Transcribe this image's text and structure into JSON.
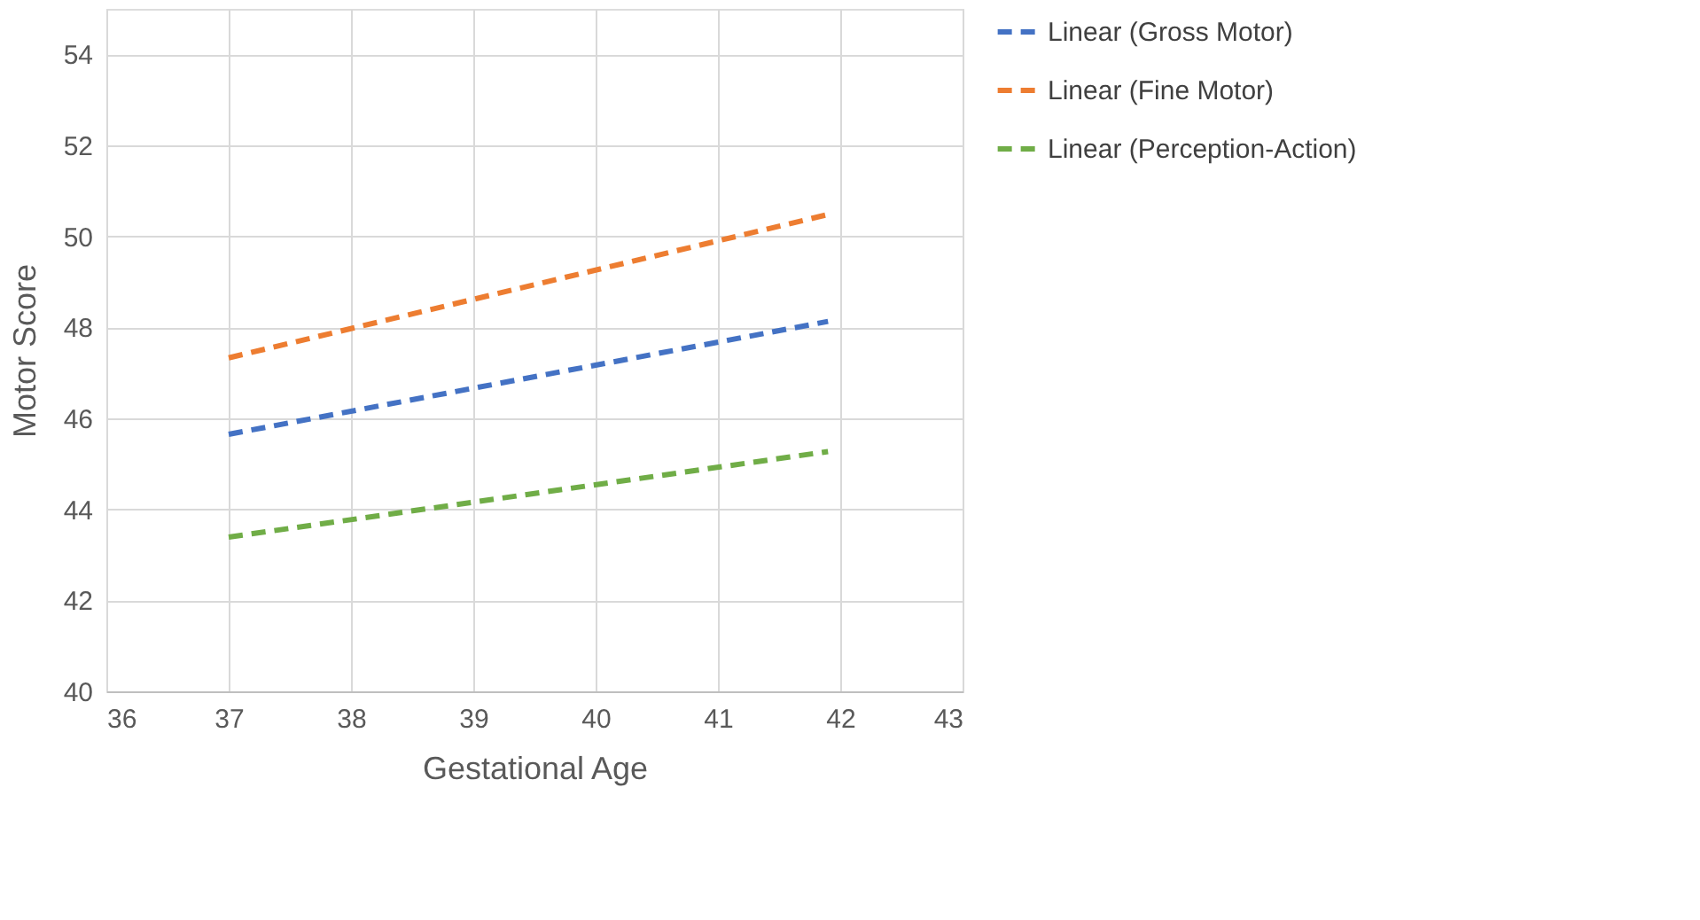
{
  "chart_data": {
    "type": "line",
    "xlabel": "Gestational Age",
    "ylabel": "Motor Score",
    "x": [
      37,
      41.9
    ],
    "series": [
      {
        "name": "Linear (Gross Motor)",
        "color": "#4472c4",
        "values": [
          45.65,
          48.13
        ]
      },
      {
        "name": "Linear (Fine Motor)",
        "color": "#ed7d31",
        "values": [
          47.33,
          50.48
        ]
      },
      {
        "name": "Linear (Perception-Action)",
        "color": "#70ad47",
        "values": [
          43.39,
          45.27
        ]
      }
    ],
    "xlim": [
      36,
      43
    ],
    "xticks": [
      36,
      37,
      38,
      39,
      40,
      41,
      42,
      43
    ],
    "ylim": [
      40,
      55
    ],
    "yticks": [
      40,
      42,
      44,
      46,
      48,
      50,
      52,
      54
    ],
    "grid": true,
    "legend": "right",
    "line_style": "dashed",
    "marker": "none"
  }
}
